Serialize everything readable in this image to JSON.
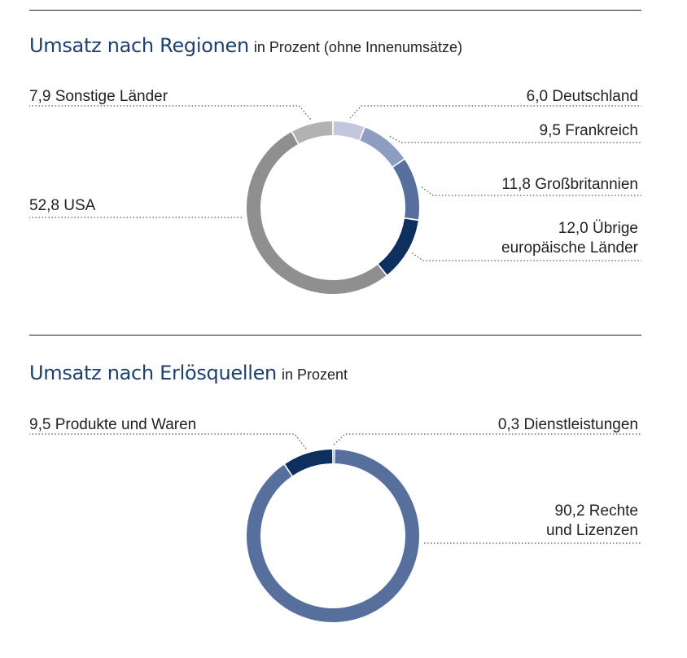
{
  "chart_data": [
    {
      "type": "pie",
      "variant": "donut",
      "title": "Umsatz nach Regionen",
      "subtitle": "in Prozent (ohne Innenumsätze)",
      "unit": "%",
      "slices": [
        {
          "value": 6.0,
          "value_label": "6,0",
          "label_lines": [
            "Deutschland"
          ],
          "color": "#c3c6dc",
          "side": "right"
        },
        {
          "value": 9.5,
          "value_label": "9,5",
          "label_lines": [
            "Frankreich"
          ],
          "color": "#8d9cc1",
          "side": "right"
        },
        {
          "value": 11.8,
          "value_label": "11,8",
          "label_lines": [
            "Großbritannien"
          ],
          "color": "#566f9c",
          "side": "right"
        },
        {
          "value": 12.0,
          "value_label": "12,0",
          "label_lines": [
            "Übrige",
            "europäische Länder"
          ],
          "color": "#0e305e",
          "side": "right"
        },
        {
          "value": 52.8,
          "value_label": "52,8",
          "label_lines": [
            "USA"
          ],
          "color": "#8f8f8f",
          "side": "left"
        },
        {
          "value": 7.9,
          "value_label": "7,9",
          "label_lines": [
            "Sonstige Länder"
          ],
          "color": "#b2b2b2",
          "side": "left"
        }
      ]
    },
    {
      "type": "pie",
      "variant": "donut",
      "title": "Umsatz nach Erlösquellen",
      "subtitle": "in Prozent",
      "unit": "%",
      "slices": [
        {
          "value": 0.3,
          "value_label": "0,3",
          "label_lines": [
            "Dienstleistungen"
          ],
          "color": "#b7c0d8",
          "side": "right"
        },
        {
          "value": 90.2,
          "value_label": "90,2",
          "label_lines": [
            "Rechte",
            "und Lizenzen"
          ],
          "color": "#566f9c",
          "side": "right"
        },
        {
          "value": 9.5,
          "value_label": "9,5",
          "label_lines": [
            "Produkte und Waren"
          ],
          "color": "#0e305e",
          "side": "left"
        }
      ]
    }
  ]
}
